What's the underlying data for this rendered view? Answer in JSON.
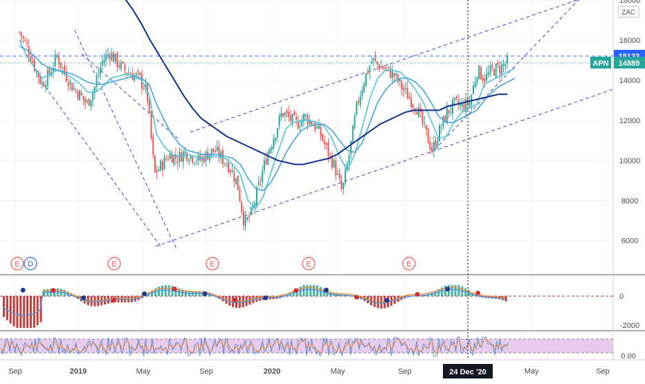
{
  "chart_data": {
    "type": "candlestick",
    "symbol": "APN",
    "currency": "ZAC",
    "last_price_label": "14889",
    "resistance_label": "15133",
    "crosshair_date_label": "24 Dec '20",
    "price_axis": {
      "ticks": [
        "6000",
        "8000",
        "10000",
        "12000",
        "14000",
        "16000",
        "18000"
      ],
      "ylim": [
        4300,
        18000
      ]
    },
    "macd_axis": {
      "ticks": [
        "0",
        "-2000"
      ]
    },
    "stoch_axis": {
      "ticks": [
        "0.00"
      ]
    },
    "time_axis": {
      "labels": [
        {
          "text": "Sep",
          "bold": false
        },
        {
          "text": "2019",
          "bold": true
        },
        {
          "text": "May",
          "bold": false
        },
        {
          "text": "Sep",
          "bold": false
        },
        {
          "text": "2020",
          "bold": true
        },
        {
          "text": "May",
          "bold": false
        },
        {
          "text": "Sep",
          "bold": false
        },
        {
          "text": "May",
          "bold": false
        },
        {
          "text": "Sep",
          "bold": false
        }
      ]
    },
    "price_path": [
      16400,
      15700,
      14700,
      13800,
      14300,
      15200,
      14400,
      13700,
      13300,
      12800,
      13600,
      14900,
      15400,
      14900,
      14500,
      14300,
      14100,
      13400,
      9300,
      9800,
      10300,
      10100,
      10400,
      10200,
      10000,
      10300,
      10500,
      10100,
      9700,
      8900,
      6800,
      7400,
      8900,
      10300,
      11300,
      12400,
      12100,
      11800,
      12200,
      11900,
      11400,
      10500,
      9700,
      8400,
      10400,
      12800,
      14100,
      15000,
      14700,
      14500,
      14200,
      13600,
      13100,
      12600,
      11500,
      10500,
      11500,
      12400,
      12800,
      12700,
      12900,
      14500,
      14100,
      14500,
      14600,
      14889
    ],
    "sma_fast": [
      16000,
      15200,
      14600,
      14100,
      14300,
      14500,
      14300,
      14100,
      13800,
      13400,
      13400,
      13700,
      14100,
      14200,
      14300,
      14200,
      14000,
      13300,
      11300,
      10700,
      10300,
      10200,
      10300,
      10200,
      10100,
      10200,
      10200,
      10100,
      9800,
      9300,
      8000,
      7600,
      8200,
      9400,
      10500,
      11600,
      11900,
      12000,
      12000,
      11900,
      11700,
      11100,
      10200,
      9500,
      10300,
      11700,
      13100,
      14100,
      14500,
      14500,
      14400,
      14000,
      13500,
      12900,
      12000,
      11100,
      11200,
      11900,
      12400,
      12600,
      12800,
      13800,
      14000,
      14200,
      14400,
      14600
    ],
    "sma_mid": [
      15700,
      15500,
      15200,
      14800,
      14600,
      14500,
      14400,
      14300,
      14100,
      13900,
      13800,
      13800,
      13900,
      14000,
      14100,
      14200,
      14100,
      13800,
      12800,
      12000,
      11300,
      10800,
      10500,
      10400,
      10300,
      10300,
      10300,
      10200,
      10100,
      9800,
      9100,
      8600,
      8500,
      8900,
      9600,
      10400,
      11000,
      11500,
      11700,
      11800,
      11800,
      11500,
      11000,
      10500,
      10400,
      10900,
      11900,
      12900,
      13500,
      13900,
      14100,
      14100,
      13900,
      13500,
      12900,
      12200,
      11900,
      11900,
      12100,
      12300,
      12500,
      13000,
      13400,
      13700,
      13900,
      14100
    ],
    "sma_slow": [
      18100,
      17500,
      16800,
      16000,
      15300,
      14600,
      13900,
      13200,
      12600,
      12100,
      11800,
      11500,
      11200,
      11000,
      10800,
      10600,
      10400,
      10200,
      10000,
      9900,
      9800,
      9800,
      9900,
      10000,
      10100,
      10300,
      10600,
      10900,
      11200,
      11500,
      11800,
      12000,
      12200,
      12400,
      12500,
      12500,
      12500,
      12500,
      12700,
      12800,
      12900,
      13000,
      13100,
      13200,
      13300,
      13300
    ],
    "channel_trendlines": [
      {
        "from": [
          0,
          10700
        ],
        "to": [
          1,
          7400
        ],
        "style": "dashed"
      },
      {
        "from": [
          0,
          15400
        ],
        "to": [
          1,
          6000
        ],
        "style": "dashed"
      },
      {
        "from": [
          0,
          6400
        ],
        "to": [
          1,
          10400
        ],
        "style": "dashed"
      },
      {
        "from": [
          0,
          11300
        ],
        "to": [
          1,
          17800
        ],
        "style": "dashed"
      },
      {
        "from": [
          0,
          5800
        ],
        "to": [
          1,
          13600
        ],
        "style": "dashed"
      },
      {
        "from": [
          0,
          10400
        ],
        "to": [
          1,
          18100
        ],
        "style": "dashed"
      }
    ],
    "earnings_markers": [
      "E",
      "E",
      "E",
      "E",
      "E"
    ],
    "dividend_marker": "D",
    "series_colors": {
      "bull": "#26a69a",
      "bear": "#ef5350",
      "sma_fast": "#4fc3d9",
      "sma_mid": "#42a5d8",
      "sma_slow": "#0d2d8a",
      "trend": "#3f3fc8",
      "price_line": "#26a69a",
      "resistance": "#2962ff",
      "stoch_band": "#e1bee7",
      "stoch_k": "#4f8fdc",
      "stoch_d": "#e88a3c"
    }
  }
}
